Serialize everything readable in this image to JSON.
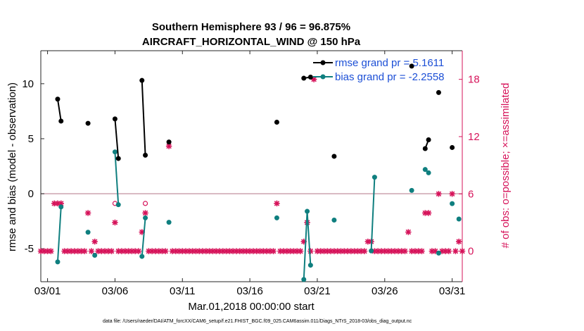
{
  "chart_data": {
    "type": "scatter",
    "title": "Southern Hemisphere 93 / 96 = 96.875%",
    "subtitle": "AIRCRAFT_HORIZONTAL_WIND @ 150 hPa",
    "xlabel": "Mar.01,2018 00:00:00 start",
    "ylabel_left": "rmse and bias (model - observation)",
    "ylabel_right": "# of obs: o=possible; ×=assimilated",
    "footer": "data file: /Users/raeder/DAI/ATM_forcXX/CAM6_setup/f.e21.FHIST_BGC.f09_025.CAM6assim.011/Diags_NTrS_2018-03/obs_diag_output.nc",
    "xlim": [
      0.5,
      31.75
    ],
    "ylim_left": [
      -8,
      13
    ],
    "ylim_right": [
      -3.2,
      21.0
    ],
    "x_ticks": [
      {
        "value": 1,
        "label": "03/01"
      },
      {
        "value": 6,
        "label": "03/06"
      },
      {
        "value": 11,
        "label": "03/11"
      },
      {
        "value": 16,
        "label": "03/16"
      },
      {
        "value": 21,
        "label": "03/21"
      },
      {
        "value": 26,
        "label": "03/26"
      },
      {
        "value": 31,
        "label": "03/31"
      }
    ],
    "y_ticks_left": [
      {
        "value": -5,
        "label": "-5"
      },
      {
        "value": 0,
        "label": "0"
      },
      {
        "value": 5,
        "label": "5"
      },
      {
        "value": 10,
        "label": "10"
      }
    ],
    "y_ticks_right": [
      {
        "value": 0,
        "label": "0"
      },
      {
        "value": 6,
        "label": "6"
      },
      {
        "value": 12,
        "label": "12"
      },
      {
        "value": 18,
        "label": "18"
      }
    ],
    "zero_line": 0,
    "series": [
      {
        "name": "rmse",
        "legend": "rmse grand pr = 5.1611",
        "color": "#000000",
        "axis": "left",
        "points": [
          [
            1.75,
            8.6
          ],
          [
            2.0,
            6.6
          ],
          [
            null,
            null
          ],
          [
            4.0,
            6.4
          ],
          [
            null,
            null
          ],
          [
            6.0,
            6.8
          ],
          [
            6.25,
            3.2
          ],
          [
            null,
            null
          ],
          [
            8.0,
            10.3
          ],
          [
            8.25,
            3.5
          ],
          [
            null,
            null
          ],
          [
            10.0,
            4.7
          ],
          [
            null,
            null
          ],
          [
            18.0,
            6.5
          ],
          [
            null,
            null
          ],
          [
            20.0,
            10.5
          ],
          [
            20.5,
            10.6
          ],
          [
            null,
            null
          ],
          [
            22.25,
            3.4
          ],
          [
            null,
            null
          ],
          [
            28.0,
            11.6
          ],
          [
            null,
            null
          ],
          [
            29.0,
            4.1
          ],
          [
            29.25,
            4.9
          ],
          [
            null,
            null
          ],
          [
            30.0,
            9.2
          ],
          [
            null,
            null
          ],
          [
            31.0,
            4.2
          ]
        ]
      },
      {
        "name": "bias",
        "legend": "bias grand pr = -2.2558",
        "color": "#0f7f7f",
        "axis": "left",
        "points": [
          [
            1.75,
            -6.2
          ],
          [
            2.0,
            -1.2
          ],
          [
            null,
            null
          ],
          [
            4.0,
            -3.5
          ],
          [
            null,
            null
          ],
          [
            4.5,
            -5.6
          ],
          [
            null,
            null
          ],
          [
            6.0,
            3.8
          ],
          [
            6.25,
            -1.0
          ],
          [
            null,
            null
          ],
          [
            8.0,
            -5.7
          ],
          [
            8.25,
            -2.2
          ],
          [
            null,
            null
          ],
          [
            10.0,
            -2.6
          ],
          [
            null,
            null
          ],
          [
            18.0,
            -2.2
          ],
          [
            null,
            null
          ],
          [
            20.0,
            -7.8
          ],
          [
            20.25,
            -1.6
          ],
          [
            20.5,
            -6.5
          ],
          [
            null,
            null
          ],
          [
            22.25,
            -2.4
          ],
          [
            null,
            null
          ],
          [
            25.0,
            -5.2
          ],
          [
            25.25,
            1.5
          ],
          [
            null,
            null
          ],
          [
            28.0,
            0.3
          ],
          [
            null,
            null
          ],
          [
            29.0,
            2.2
          ],
          [
            29.25,
            1.9
          ],
          [
            null,
            null
          ],
          [
            30.0,
            -5.4
          ],
          [
            null,
            null
          ],
          [
            31.0,
            -0.9
          ],
          [
            null,
            null
          ],
          [
            31.5,
            -2.3
          ]
        ]
      }
    ],
    "obs_possible": {
      "marker": "o",
      "color": "#d6135a",
      "axis": "right",
      "points": [
        [
          6.0,
          5
        ],
        [
          8.25,
          5
        ]
      ]
    },
    "obs_assimilated": {
      "marker": "x",
      "color": "#d6135a",
      "axis": "right",
      "points": [
        [
          0.5,
          0
        ],
        [
          0.75,
          0
        ],
        [
          1.0,
          0
        ],
        [
          1.25,
          0
        ],
        [
          1.5,
          5
        ],
        [
          1.75,
          5
        ],
        [
          2.0,
          5
        ],
        [
          2.25,
          0
        ],
        [
          2.5,
          0
        ],
        [
          2.75,
          0
        ],
        [
          3.0,
          0
        ],
        [
          3.25,
          0
        ],
        [
          3.5,
          0
        ],
        [
          3.75,
          0
        ],
        [
          4.0,
          4
        ],
        [
          4.25,
          0
        ],
        [
          4.5,
          1
        ],
        [
          4.75,
          0
        ],
        [
          5.0,
          0
        ],
        [
          5.25,
          0
        ],
        [
          5.5,
          0
        ],
        [
          5.75,
          0
        ],
        [
          6.0,
          3
        ],
        [
          6.25,
          0
        ],
        [
          6.5,
          0
        ],
        [
          6.75,
          0
        ],
        [
          7.0,
          0
        ],
        [
          7.25,
          0
        ],
        [
          7.5,
          0
        ],
        [
          7.75,
          0
        ],
        [
          8.0,
          2
        ],
        [
          8.25,
          4
        ],
        [
          8.5,
          0
        ],
        [
          8.75,
          0
        ],
        [
          9.0,
          0
        ],
        [
          9.25,
          0
        ],
        [
          9.5,
          0
        ],
        [
          9.75,
          0
        ],
        [
          10.0,
          11
        ],
        [
          10.25,
          0
        ],
        [
          10.5,
          0
        ],
        [
          10.75,
          0
        ],
        [
          11.0,
          0
        ],
        [
          11.25,
          0
        ],
        [
          11.5,
          0
        ],
        [
          11.75,
          0
        ],
        [
          12.0,
          0
        ],
        [
          12.25,
          0
        ],
        [
          12.5,
          0
        ],
        [
          12.75,
          0
        ],
        [
          13.0,
          0
        ],
        [
          13.25,
          0
        ],
        [
          13.5,
          0
        ],
        [
          13.75,
          0
        ],
        [
          14.0,
          0
        ],
        [
          14.25,
          0
        ],
        [
          14.5,
          0
        ],
        [
          14.75,
          0
        ],
        [
          15.0,
          0
        ],
        [
          15.25,
          0
        ],
        [
          15.5,
          0
        ],
        [
          15.75,
          0
        ],
        [
          16.0,
          0
        ],
        [
          16.25,
          0
        ],
        [
          16.5,
          0
        ],
        [
          16.75,
          0
        ],
        [
          17.0,
          0
        ],
        [
          17.25,
          0
        ],
        [
          17.5,
          0
        ],
        [
          17.75,
          0
        ],
        [
          18.0,
          5
        ],
        [
          18.25,
          0
        ],
        [
          18.5,
          0
        ],
        [
          18.75,
          0
        ],
        [
          19.0,
          0
        ],
        [
          19.25,
          0
        ],
        [
          19.5,
          0
        ],
        [
          19.75,
          0
        ],
        [
          20.0,
          1
        ],
        [
          20.25,
          3
        ],
        [
          20.5,
          0
        ],
        [
          20.75,
          18
        ],
        [
          21.0,
          0
        ],
        [
          21.25,
          0
        ],
        [
          21.5,
          0
        ],
        [
          21.75,
          0
        ],
        [
          22.0,
          0
        ],
        [
          22.25,
          0
        ],
        [
          22.5,
          0
        ],
        [
          22.75,
          0
        ],
        [
          23.0,
          0
        ],
        [
          23.25,
          0
        ],
        [
          23.5,
          0
        ],
        [
          23.75,
          0
        ],
        [
          24.0,
          0
        ],
        [
          24.25,
          0
        ],
        [
          24.5,
          0
        ],
        [
          24.75,
          1
        ],
        [
          25.0,
          1
        ],
        [
          25.25,
          0
        ],
        [
          25.5,
          0
        ],
        [
          25.75,
          0
        ],
        [
          26.0,
          0
        ],
        [
          26.25,
          0
        ],
        [
          26.5,
          0
        ],
        [
          26.75,
          0
        ],
        [
          27.0,
          0
        ],
        [
          27.25,
          0
        ],
        [
          27.5,
          0
        ],
        [
          27.75,
          2
        ],
        [
          28.0,
          0
        ],
        [
          28.25,
          0
        ],
        [
          28.5,
          0
        ],
        [
          28.75,
          0
        ],
        [
          29.0,
          4
        ],
        [
          29.25,
          4
        ],
        [
          29.5,
          0
        ],
        [
          29.75,
          0
        ],
        [
          30.0,
          6
        ],
        [
          30.25,
          0
        ],
        [
          30.5,
          0
        ],
        [
          30.75,
          0
        ],
        [
          31.0,
          6
        ],
        [
          31.25,
          0
        ],
        [
          31.5,
          1
        ],
        [
          31.75,
          0
        ]
      ]
    }
  }
}
